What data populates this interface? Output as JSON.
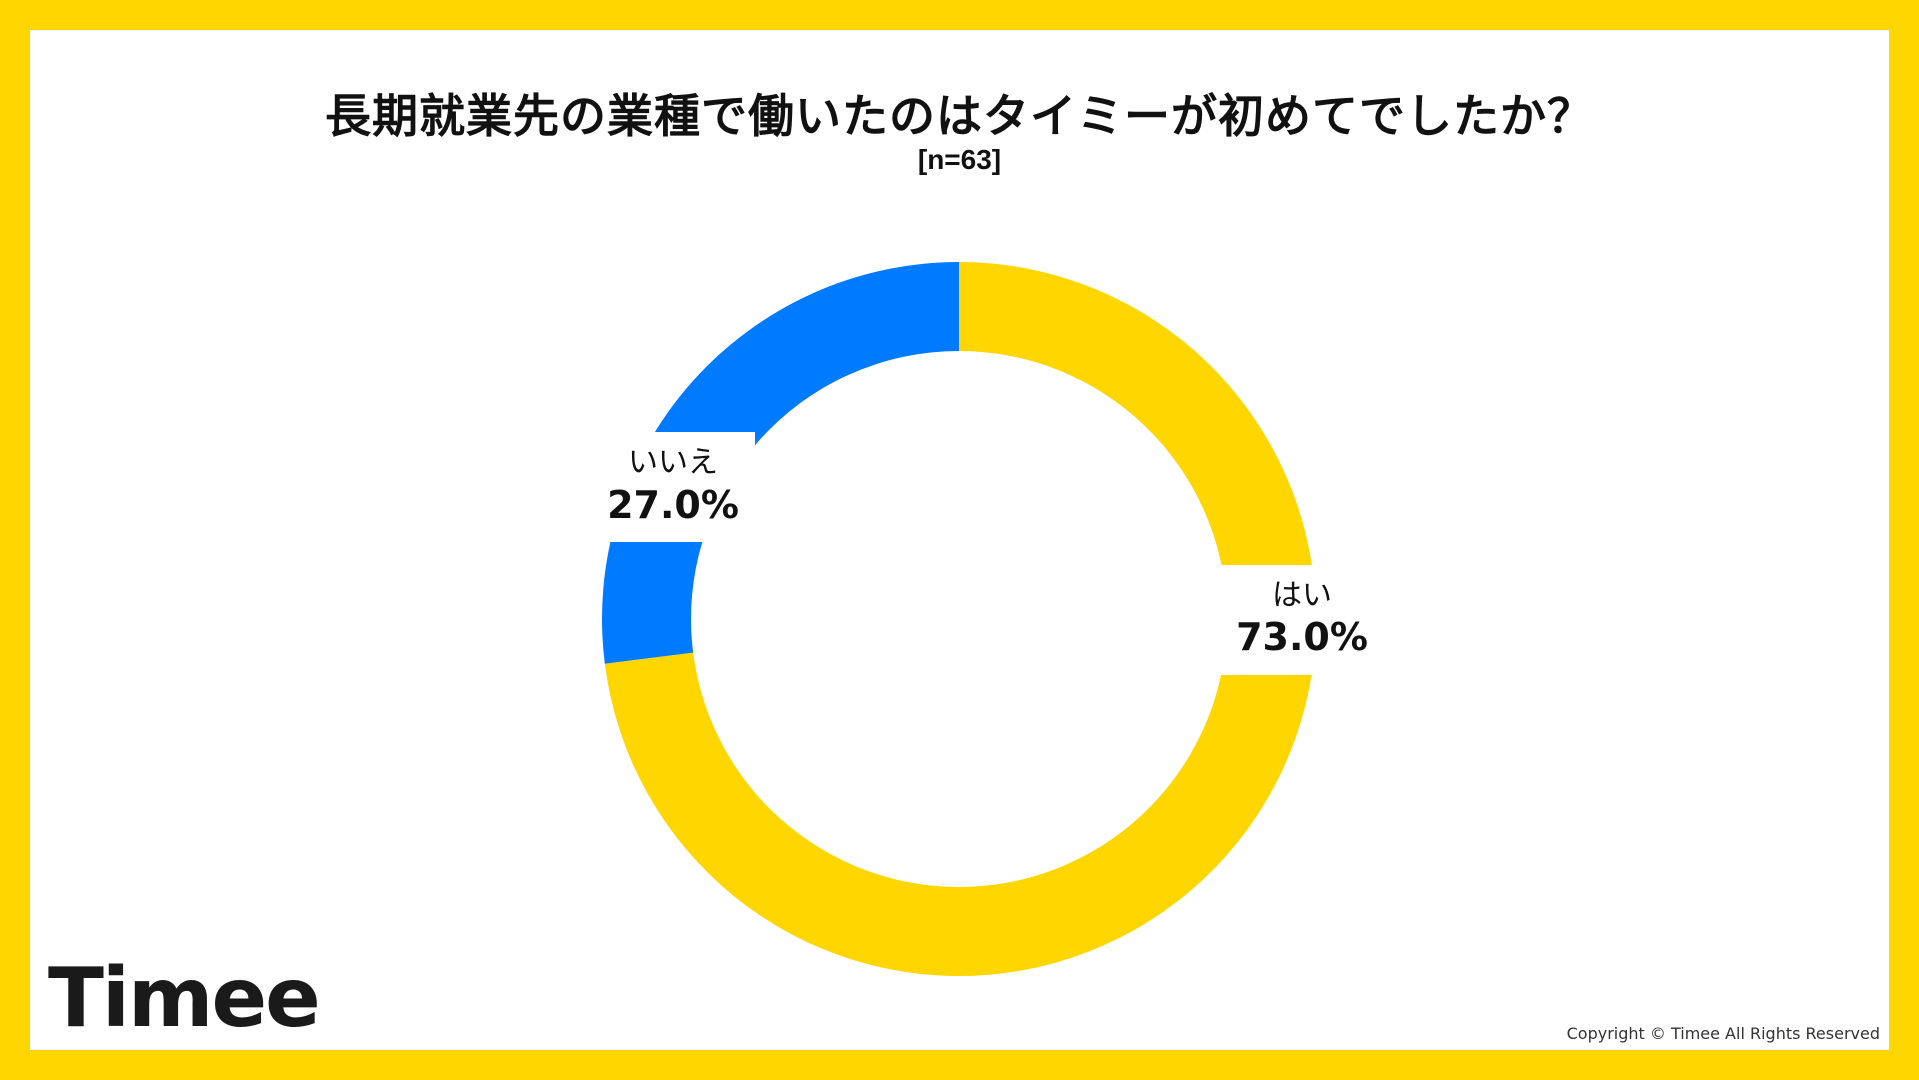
{
  "header": {
    "title": "長期就業先の業種で働いたのはタイミーが初めてでしたか？",
    "sample_size": "[n=63]"
  },
  "chart_data": {
    "type": "pie",
    "variant": "donut",
    "title": "長期就業先の業種で働いたのはタイミーが初めてでしたか？",
    "subtitle": "[n=63]",
    "categories": [
      "はい",
      "いいえ"
    ],
    "values": [
      73.0,
      27.0
    ],
    "value_labels": [
      "73.0%",
      "27.0%"
    ],
    "colors": [
      "#FFD600",
      "#007BFF"
    ],
    "start": "12 o'clock",
    "direction": "clockwise"
  },
  "footer": {
    "logo": "Timee",
    "copyright": "Copyright © Timee All Rights Reserved"
  }
}
